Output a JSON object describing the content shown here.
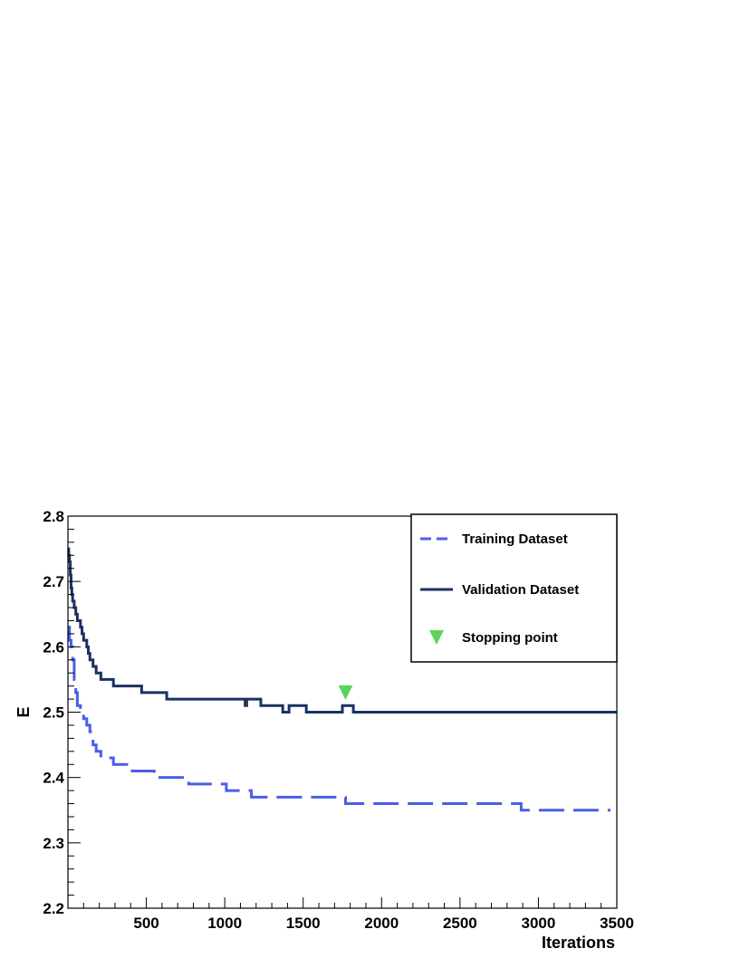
{
  "chart_data": {
    "type": "line",
    "title": "",
    "xlabel": "Iterations",
    "ylabel": "E",
    "xlim": [
      0,
      3500
    ],
    "ylim": [
      2.2,
      2.8
    ],
    "x_ticks": [
      500,
      1000,
      1500,
      2000,
      2500,
      3000,
      3500
    ],
    "x_tick_labels": [
      "500",
      "1000",
      "1500",
      "2000",
      "2500",
      "3000",
      "3500"
    ],
    "y_ticks": [
      2.2,
      2.3,
      2.4,
      2.5,
      2.6,
      2.7,
      2.8
    ],
    "y_tick_labels": [
      "2.2",
      "2.3",
      "2.4",
      "2.5",
      "2.6",
      "2.7",
      "2.8"
    ],
    "grid": false,
    "legend_position": "top-right",
    "series": [
      {
        "name": "Training Dataset",
        "style": "dashed",
        "color": "#4a5ee8",
        "step": true,
        "points": [
          [
            0,
            2.63
          ],
          [
            10,
            2.61
          ],
          [
            20,
            2.6
          ],
          [
            30,
            2.58
          ],
          [
            40,
            2.55
          ],
          [
            50,
            2.53
          ],
          [
            60,
            2.51
          ],
          [
            80,
            2.5
          ],
          [
            100,
            2.49
          ],
          [
            120,
            2.48
          ],
          [
            140,
            2.47
          ],
          [
            160,
            2.45
          ],
          [
            180,
            2.44
          ],
          [
            210,
            2.43
          ],
          [
            280,
            2.43
          ],
          [
            290,
            2.42
          ],
          [
            400,
            2.42
          ],
          [
            410,
            2.41
          ],
          [
            540,
            2.41
          ],
          [
            550,
            2.4
          ],
          [
            760,
            2.4
          ],
          [
            770,
            2.39
          ],
          [
            1000,
            2.39
          ],
          [
            1010,
            2.38
          ],
          [
            1160,
            2.38
          ],
          [
            1170,
            2.37
          ],
          [
            1760,
            2.37
          ],
          [
            1770,
            2.36
          ],
          [
            2880,
            2.36
          ],
          [
            2890,
            2.35
          ],
          [
            3460,
            2.35
          ]
        ]
      },
      {
        "name": "Validation Dataset",
        "style": "solid",
        "color": "#1b3260",
        "step": true,
        "points": [
          [
            0,
            2.75
          ],
          [
            5,
            2.74
          ],
          [
            10,
            2.73
          ],
          [
            15,
            2.71
          ],
          [
            20,
            2.69
          ],
          [
            25,
            2.68
          ],
          [
            30,
            2.67
          ],
          [
            40,
            2.66
          ],
          [
            50,
            2.65
          ],
          [
            60,
            2.64
          ],
          [
            80,
            2.63
          ],
          [
            90,
            2.62
          ],
          [
            100,
            2.61
          ],
          [
            120,
            2.6
          ],
          [
            130,
            2.59
          ],
          [
            140,
            2.58
          ],
          [
            160,
            2.57
          ],
          [
            180,
            2.56
          ],
          [
            210,
            2.55
          ],
          [
            280,
            2.55
          ],
          [
            290,
            2.54
          ],
          [
            460,
            2.54
          ],
          [
            470,
            2.53
          ],
          [
            620,
            2.53
          ],
          [
            630,
            2.52
          ],
          [
            1120,
            2.52
          ],
          [
            1130,
            2.51
          ],
          [
            1140,
            2.52
          ],
          [
            1220,
            2.52
          ],
          [
            1230,
            2.51
          ],
          [
            1360,
            2.51
          ],
          [
            1370,
            2.5
          ],
          [
            1400,
            2.5
          ],
          [
            1410,
            2.51
          ],
          [
            1510,
            2.51
          ],
          [
            1520,
            2.5
          ],
          [
            1740,
            2.5
          ],
          [
            1750,
            2.51
          ],
          [
            1810,
            2.51
          ],
          [
            1820,
            2.5
          ],
          [
            3500,
            2.5
          ]
        ]
      }
    ],
    "markers": [
      {
        "name": "Stopping point",
        "shape": "triangle-down",
        "color": "#5dd35d",
        "x": 1770,
        "y": 2.53
      }
    ]
  }
}
